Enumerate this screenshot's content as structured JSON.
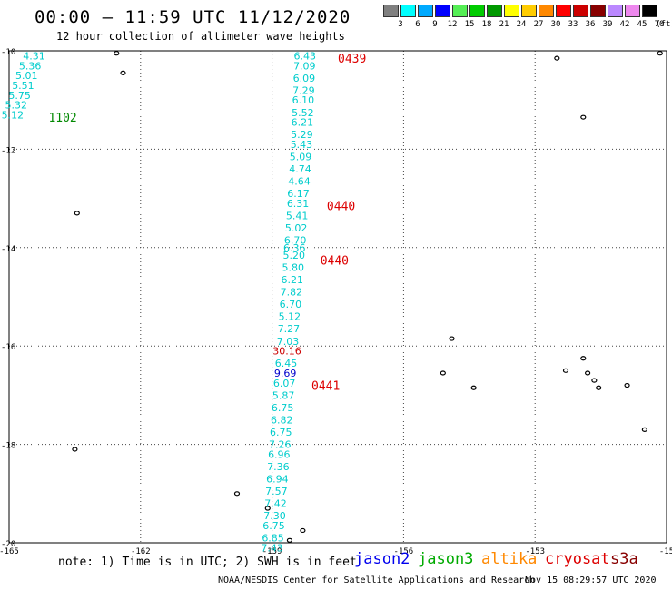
{
  "header": {
    "title": "00:00 – 11:59 UTC 11/12/2020",
    "subtitle": "12 hour collection of altimeter wave heights"
  },
  "legend": {
    "unit": "(ft)",
    "levels": [
      {
        "label": "3",
        "color": "#808080"
      },
      {
        "label": "6",
        "color": "#00ffff"
      },
      {
        "label": "9",
        "color": "#00aaff"
      },
      {
        "label": "12",
        "color": "#0000ff"
      },
      {
        "label": "15",
        "color": "#55ee55"
      },
      {
        "label": "18",
        "color": "#00cc00"
      },
      {
        "label": "21",
        "color": "#009900"
      },
      {
        "label": "24",
        "color": "#ffff00"
      },
      {
        "label": "27",
        "color": "#ffcc00"
      },
      {
        "label": "30",
        "color": "#ff8800"
      },
      {
        "label": "33",
        "color": "#ff0000"
      },
      {
        "label": "36",
        "color": "#cc0000"
      },
      {
        "label": "39",
        "color": "#880000"
      },
      {
        "label": "42",
        "color": "#bb88ff"
      },
      {
        "label": "45",
        "color": "#ee88ee"
      },
      {
        "label": "70",
        "color": "#000000"
      }
    ]
  },
  "map": {
    "lon_range": [
      -165,
      -150
    ],
    "lat_range": [
      -20,
      -10
    ],
    "lon_ticks": [
      "-165",
      "-162",
      "-159",
      "-156",
      "-153",
      "-15"
    ],
    "lat_ticks": [
      "-10",
      "-12",
      "-14",
      "-16",
      "-18",
      "-20"
    ],
    "grid": true
  },
  "tracks": [
    {
      "color": "#00cccc",
      "points": [
        {
          "lat": -10.1,
          "lon": -164.43,
          "v": "4.31"
        },
        {
          "lat": -10.3,
          "lon": -164.52,
          "v": "5.36"
        },
        {
          "lat": -10.5,
          "lon": -164.6,
          "v": "5.01"
        },
        {
          "lat": -10.7,
          "lon": -164.68,
          "v": "5.51"
        },
        {
          "lat": -10.9,
          "lon": -164.76,
          "v": "5.75"
        },
        {
          "lat": -11.1,
          "lon": -164.84,
          "v": "5.32"
        },
        {
          "lat": -11.3,
          "lon": -164.92,
          "v": "5.12"
        }
      ]
    },
    {
      "color": "#00cccc",
      "points": [
        {
          "lat": -10.1,
          "lon": -158.25,
          "v": "6.43"
        },
        {
          "lat": -10.3,
          "lon": -158.26,
          "v": "7.09"
        },
        {
          "lat": -10.55,
          "lon": -158.27,
          "v": "6.09"
        },
        {
          "lat": -10.8,
          "lon": -158.28,
          "v": "7.29"
        },
        {
          "lat": -11.0,
          "lon": -158.29,
          "v": "6.10"
        },
        {
          "lat": -11.25,
          "lon": -158.3,
          "v": "5.52"
        },
        {
          "lat": -11.45,
          "lon": -158.31,
          "v": "6.21"
        },
        {
          "lat": -11.7,
          "lon": -158.32,
          "v": "5.29"
        },
        {
          "lat": -11.9,
          "lon": -158.33,
          "v": "5.43"
        },
        {
          "lat": -12.15,
          "lon": -158.35,
          "v": "5.09"
        },
        {
          "lat": -12.4,
          "lon": -158.36,
          "v": "4.74"
        },
        {
          "lat": -12.65,
          "lon": -158.38,
          "v": "4.64"
        },
        {
          "lat": -12.9,
          "lon": -158.4,
          "v": "6.17"
        },
        {
          "lat": -13.1,
          "lon": -158.41,
          "v": "6.31"
        },
        {
          "lat": -13.35,
          "lon": -158.43,
          "v": "5.41"
        },
        {
          "lat": -13.6,
          "lon": -158.45,
          "v": "5.02"
        },
        {
          "lat": -13.85,
          "lon": -158.47,
          "v": "6.70"
        },
        {
          "lat": -14.0,
          "lon": -158.49,
          "v": "6.36"
        },
        {
          "lat": -14.15,
          "lon": -158.5,
          "v": "5.20"
        },
        {
          "lat": -14.4,
          "lon": -158.52,
          "v": "5.80"
        },
        {
          "lat": -14.65,
          "lon": -158.54,
          "v": "6.21"
        },
        {
          "lat": -14.9,
          "lon": -158.56,
          "v": "7.82"
        },
        {
          "lat": -15.15,
          "lon": -158.58,
          "v": "6.70"
        },
        {
          "lat": -15.4,
          "lon": -158.6,
          "v": "5.12"
        },
        {
          "lat": -15.65,
          "lon": -158.62,
          "v": "7.27"
        },
        {
          "lat": -15.9,
          "lon": -158.64,
          "v": "7.03"
        }
      ]
    },
    {
      "color": "#cc0000",
      "points": [
        {
          "lat": -16.1,
          "lon": -158.66,
          "v": "30.16"
        }
      ]
    },
    {
      "color": "#00cccc",
      "points": [
        {
          "lat": -16.35,
          "lon": -158.68,
          "v": "6.45"
        }
      ]
    },
    {
      "color": "#0000cc",
      "points": [
        {
          "lat": -16.55,
          "lon": -158.7,
          "v": "9.69"
        }
      ]
    },
    {
      "color": "#00cccc",
      "points": [
        {
          "lat": -16.75,
          "lon": -158.72,
          "v": "6.07"
        },
        {
          "lat": -17.0,
          "lon": -158.74,
          "v": "5.87"
        },
        {
          "lat": -17.25,
          "lon": -158.76,
          "v": "6.75"
        },
        {
          "lat": -17.5,
          "lon": -158.78,
          "v": "6.82"
        },
        {
          "lat": -17.75,
          "lon": -158.8,
          "v": "6.75"
        },
        {
          "lat": -18.0,
          "lon": -158.82,
          "v": "7.26"
        },
        {
          "lat": -18.2,
          "lon": -158.84,
          "v": "6.96"
        },
        {
          "lat": -18.45,
          "lon": -158.86,
          "v": "7.36"
        },
        {
          "lat": -18.7,
          "lon": -158.88,
          "v": "6.94"
        },
        {
          "lat": -18.95,
          "lon": -158.9,
          "v": "7.57"
        },
        {
          "lat": -19.2,
          "lon": -158.92,
          "v": "7.42"
        },
        {
          "lat": -19.45,
          "lon": -158.94,
          "v": "7.30"
        },
        {
          "lat": -19.65,
          "lon": -158.96,
          "v": "6.75"
        },
        {
          "lat": -19.9,
          "lon": -158.98,
          "v": "6.85"
        },
        {
          "lat": -20.1,
          "lon": -159.0,
          "v": "7.43"
        }
      ]
    }
  ],
  "time_labels": [
    {
      "text": "0439",
      "color": "#dd0000",
      "lat": -10.15,
      "lon": -157.5
    },
    {
      "text": "1102",
      "color": "#008800",
      "lat": -11.35,
      "lon": -164.1
    },
    {
      "text": "0440",
      "color": "#dd0000",
      "lat": -13.15,
      "lon": -157.75
    },
    {
      "text": "0440",
      "color": "#dd0000",
      "lat": -14.25,
      "lon": -157.9
    },
    {
      "text": "0441",
      "color": "#dd0000",
      "lat": -16.8,
      "lon": -158.1
    }
  ],
  "islands": [
    {
      "lat": -10.05,
      "lon": -162.55
    },
    {
      "lat": -10.45,
      "lon": -162.4
    },
    {
      "lat": -13.3,
      "lon": -163.45
    },
    {
      "lat": -18.1,
      "lon": -163.5
    },
    {
      "lat": -19.0,
      "lon": -159.8
    },
    {
      "lat": -19.3,
      "lon": -159.1
    },
    {
      "lat": -19.95,
      "lon": -158.6
    },
    {
      "lat": -19.75,
      "lon": -158.3
    },
    {
      "lat": -10.15,
      "lon": -152.5
    },
    {
      "lat": -10.05,
      "lon": -150.15
    },
    {
      "lat": -11.35,
      "lon": -151.9
    },
    {
      "lat": -15.85,
      "lon": -154.9
    },
    {
      "lat": -16.55,
      "lon": -155.1
    },
    {
      "lat": -16.85,
      "lon": -154.4
    },
    {
      "lat": -16.25,
      "lon": -151.9
    },
    {
      "lat": -16.5,
      "lon": -152.3
    },
    {
      "lat": -16.55,
      "lon": -151.8
    },
    {
      "lat": -16.7,
      "lon": -151.65
    },
    {
      "lat": -16.85,
      "lon": -151.55
    },
    {
      "lat": -16.8,
      "lon": -150.9
    },
    {
      "lat": -17.7,
      "lon": -150.5
    }
  ],
  "footer": {
    "note": "note: 1) Time is in UTC; 2) SWH is in feet",
    "satellites": [
      {
        "name": "jason2",
        "color": "#0000ee"
      },
      {
        "name": "jason3",
        "color": "#00aa00"
      },
      {
        "name": "altika",
        "color": "#ff8800"
      },
      {
        "name": "cryosat",
        "color": "#dd0000"
      },
      {
        "name": "s3a",
        "color": "#880000"
      }
    ],
    "credit": "NOAA/NESDIS Center for Satellite Applications and Research",
    "timestamp": "Nov 15 08:29:57 UTC 2020"
  }
}
